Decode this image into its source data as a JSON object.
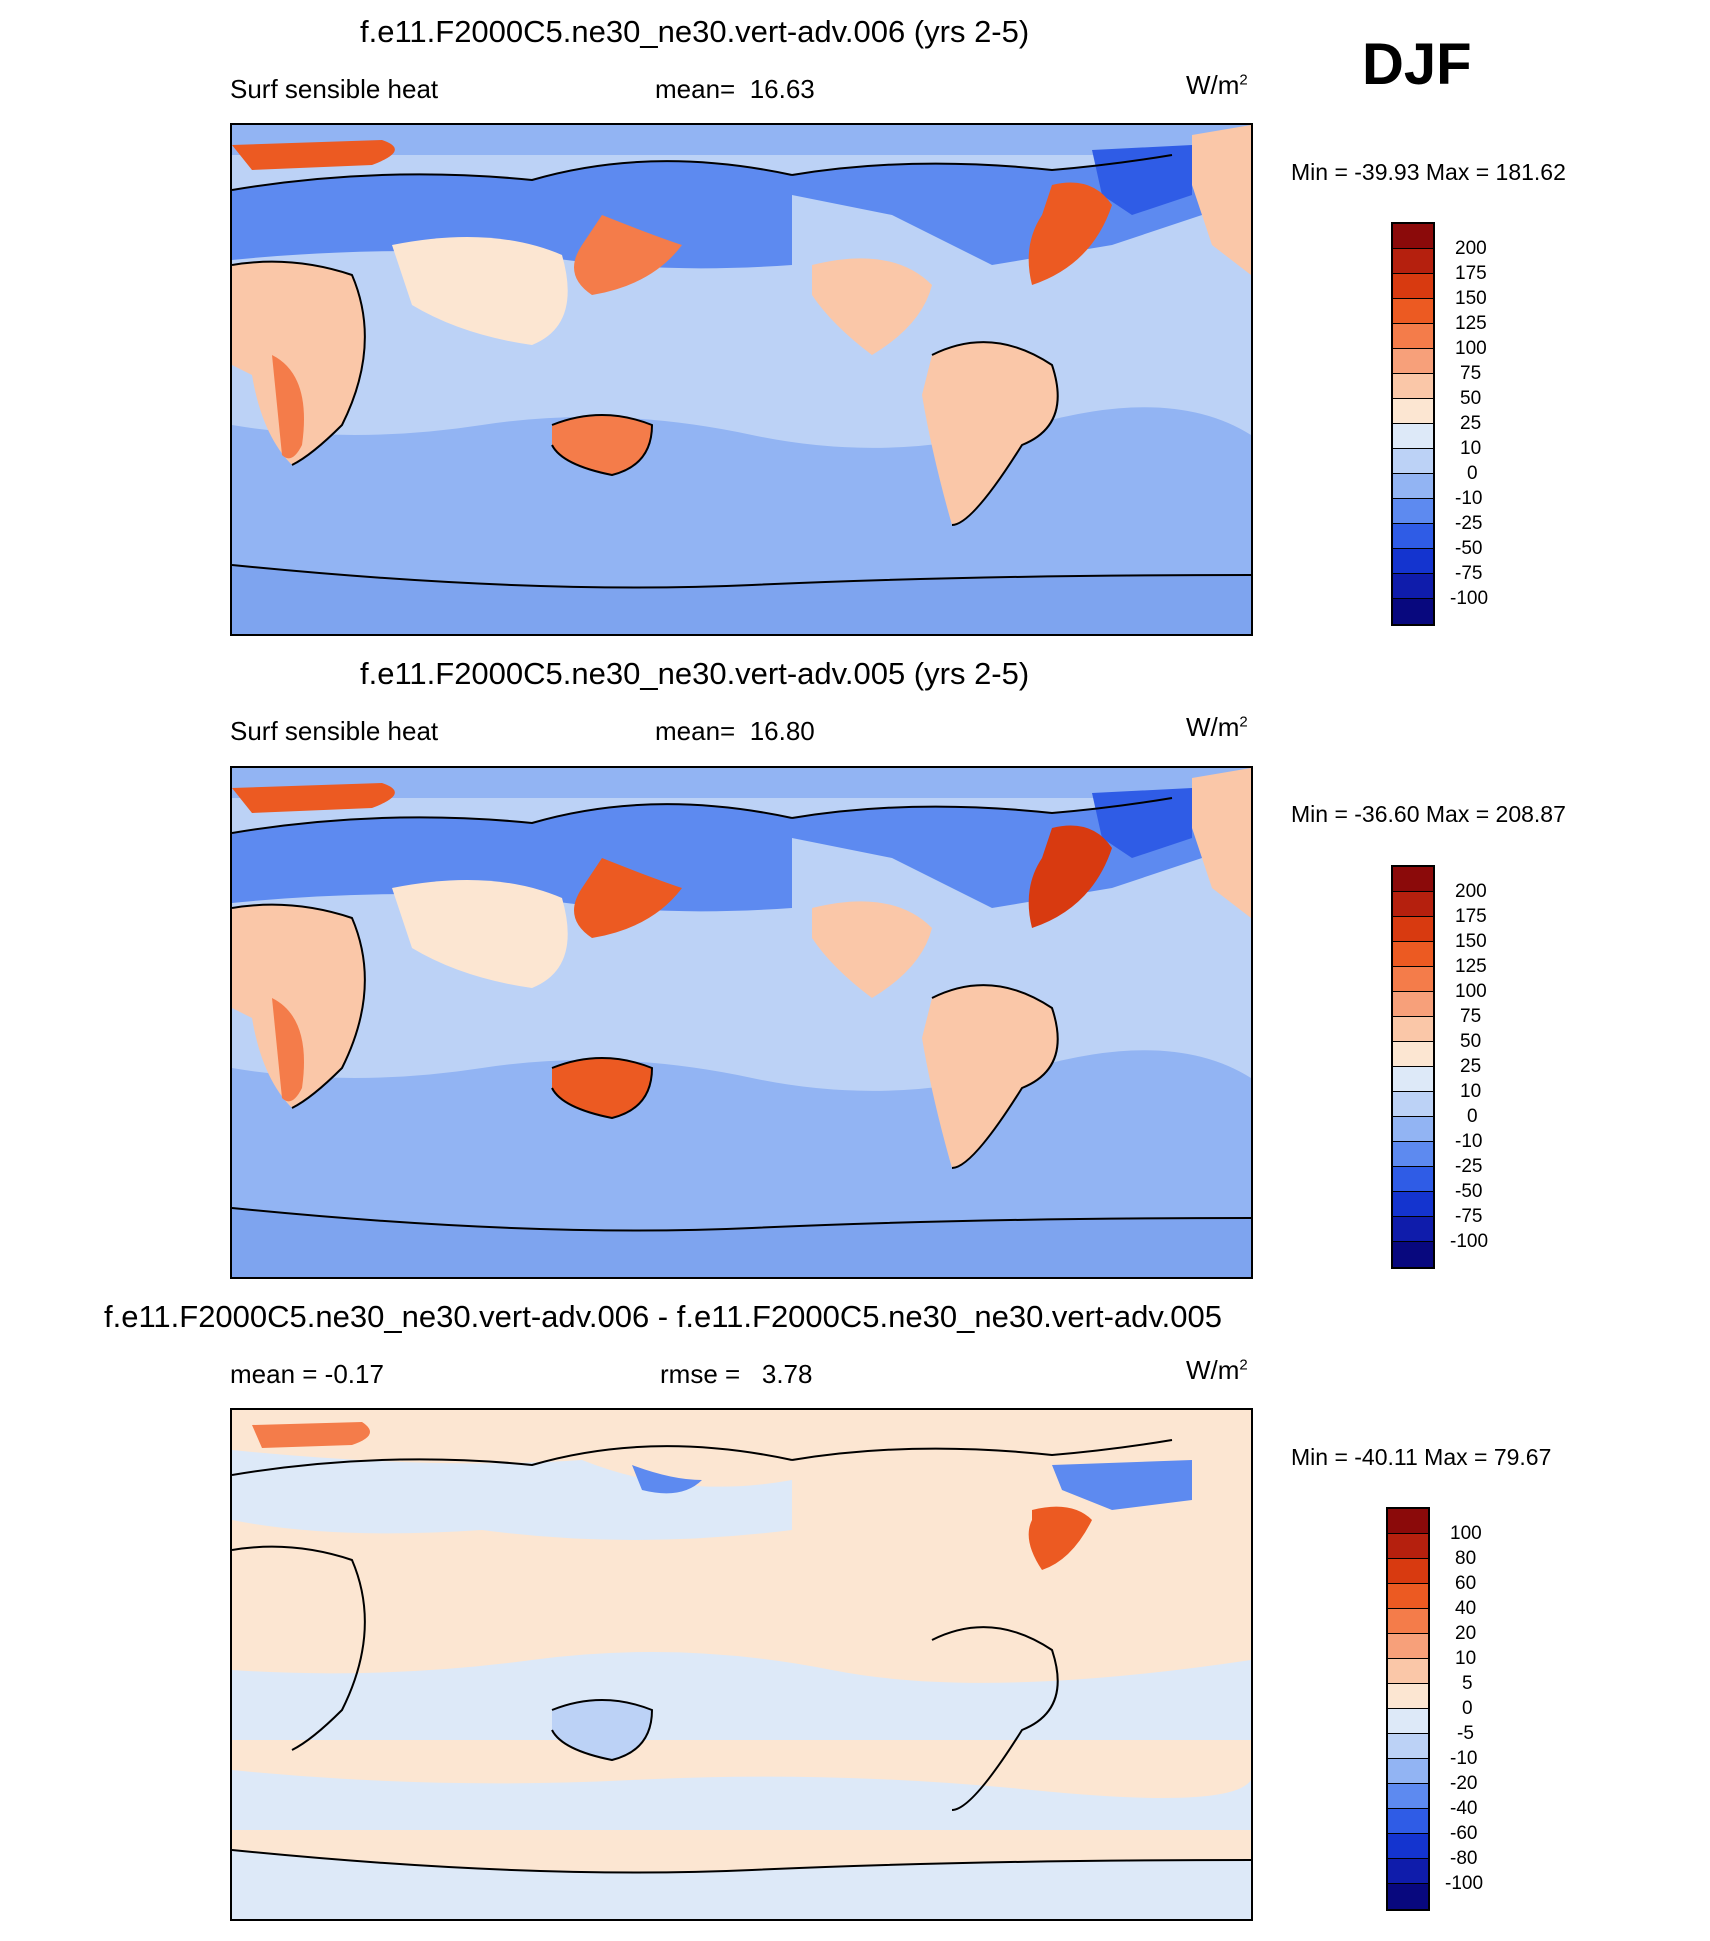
{
  "season": "DJF",
  "panels": [
    {
      "title": "f.e11.F2000C5.ne30_ne30.vert-adv.006 (yrs 2-5)",
      "left": "Surf sensible heat",
      "stat_label": "mean=",
      "stat_value": "16.63",
      "units": "W/m",
      "units_sup": "2",
      "minmax": "Min = -39.93 Max = 181.62",
      "levels": [
        "200",
        "175",
        "150",
        "125",
        "100",
        "75",
        "50",
        "25",
        "10",
        "0",
        "-10",
        "-25",
        "-50",
        "-75",
        "-100"
      ]
    },
    {
      "title": "f.e11.F2000C5.ne30_ne30.vert-adv.005 (yrs 2-5)",
      "left": "Surf sensible heat",
      "stat_label": "mean=",
      "stat_value": "16.80",
      "units": "W/m",
      "units_sup": "2",
      "minmax": "Min = -36.60 Max = 208.87",
      "levels": [
        "200",
        "175",
        "150",
        "125",
        "100",
        "75",
        "50",
        "25",
        "10",
        "0",
        "-10",
        "-25",
        "-50",
        "-75",
        "-100"
      ]
    },
    {
      "title": "f.e11.F2000C5.ne30_ne30.vert-adv.006 - f.e11.F2000C5.ne30_ne30.vert-adv.005",
      "left": "mean =  -0.17",
      "stat_label": "rmse =",
      "stat_value": "3.78",
      "units": "W/m",
      "units_sup": "2",
      "minmax": "Min = -40.11 Max =  79.67",
      "levels": [
        "100",
        "80",
        "60",
        "40",
        "20",
        "10",
        "5",
        "0",
        "-5",
        "-10",
        "-20",
        "-40",
        "-60",
        "-80",
        "-100"
      ]
    }
  ],
  "colorbar_colors": [
    "#8b0a0a",
    "#b5200e",
    "#d83a10",
    "#ec5a22",
    "#f47c4a",
    "#f7a07a",
    "#fac7a8",
    "#fce6d2",
    "#dde9f8",
    "#bcd2f6",
    "#92b4f3",
    "#5d8af0",
    "#2f5ce6",
    "#1434cf",
    "#0f1cab",
    "#08087e"
  ],
  "map_colors": {
    "ocean_mid": "#bcd2f6",
    "ocean_low": "#92b4f3",
    "land_warm": "#fac7a8",
    "land_cold": "#5d8af0",
    "hot": "#ec5a22",
    "diff_base": "#fce6d2",
    "diff_ocean": "#dde9f8"
  }
}
